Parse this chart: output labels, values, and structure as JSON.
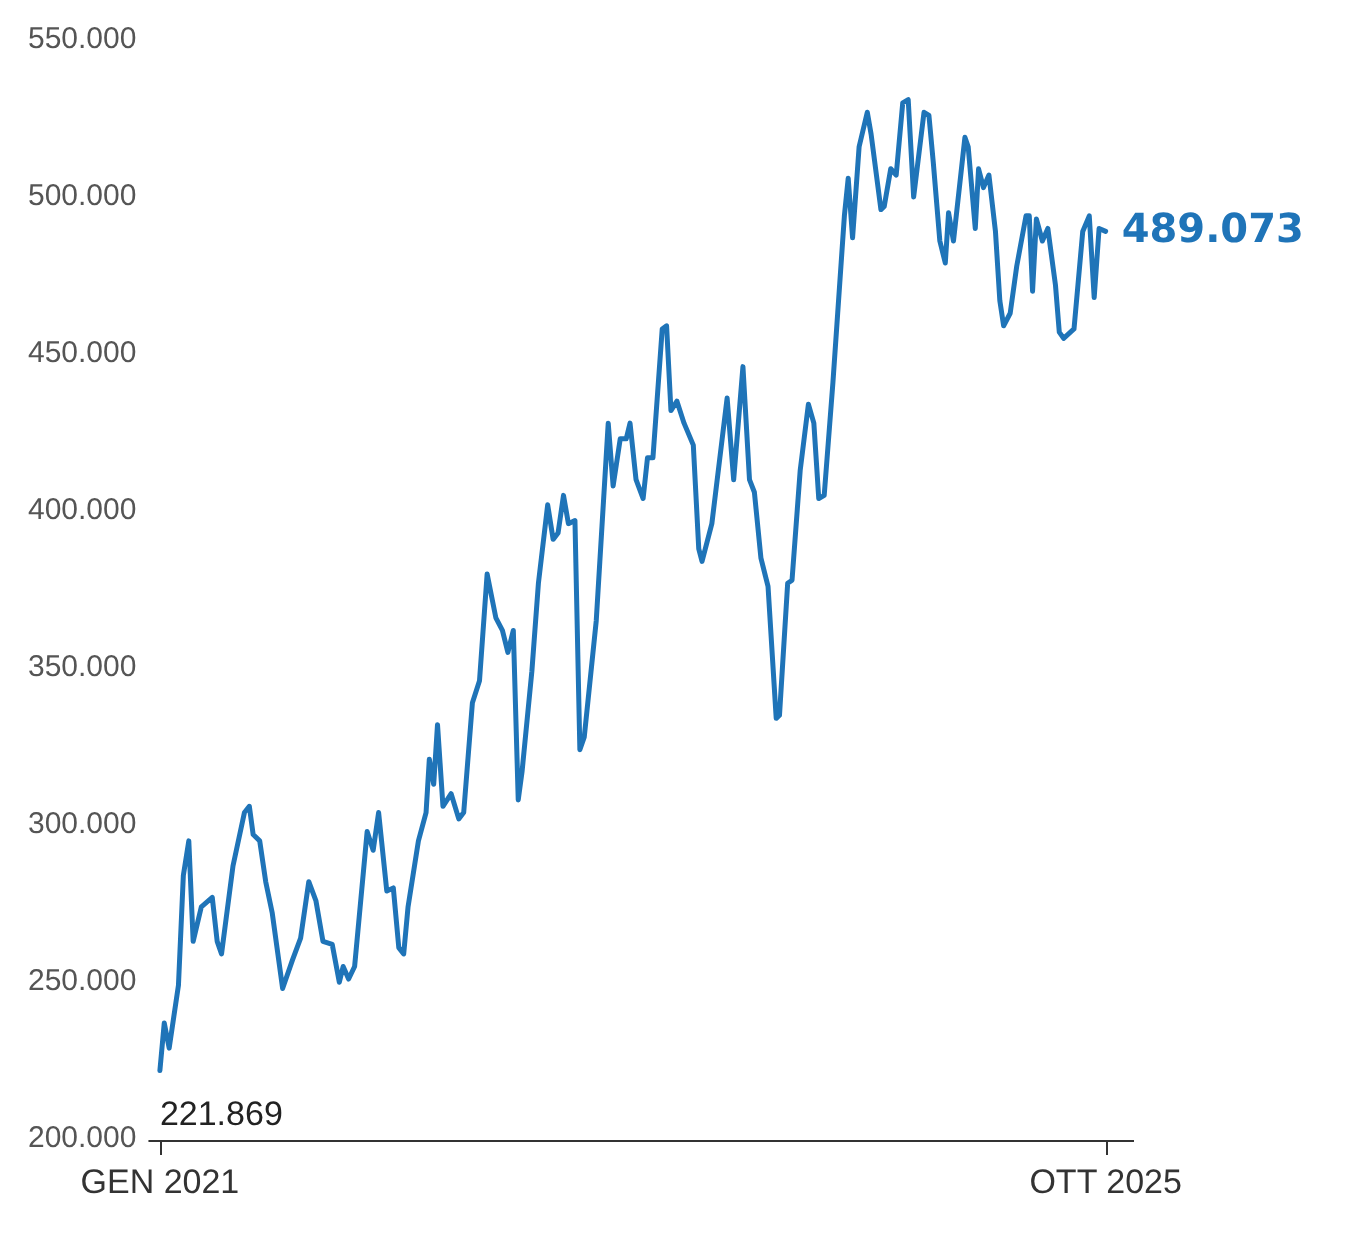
{
  "chart_data": {
    "type": "line",
    "x": [
      "2021-01-01",
      "2021-01-09",
      "2021-01-18",
      "2021-02-04",
      "2021-02-13",
      "2021-02-23",
      "2021-03-03",
      "2021-03-18",
      "2021-04-07",
      "2021-04-16",
      "2021-04-24",
      "2021-05-15",
      "2021-06-05",
      "2021-06-14",
      "2021-06-21",
      "2021-07-03",
      "2021-07-14",
      "2021-07-26",
      "2021-08-14",
      "2021-09-01",
      "2021-09-16",
      "2021-10-01",
      "2021-10-14",
      "2021-10-27",
      "2021-11-13",
      "2021-11-26",
      "2021-12-03",
      "2021-12-13",
      "2021-12-24",
      "2022-01-16",
      "2022-01-27",
      "2022-02-06",
      "2022-02-21",
      "2022-03-05",
      "2022-03-15",
      "2022-03-24",
      "2022-04-01",
      "2022-04-20",
      "2022-05-04",
      "2022-05-10",
      "2022-05-18",
      "2022-05-25",
      "2022-06-04",
      "2022-06-19",
      "2022-07-03",
      "2022-07-12",
      "2022-07-28",
      "2022-08-10",
      "2022-08-24",
      "2022-09-09",
      "2022-09-21",
      "2022-10-01",
      "2022-10-11",
      "2022-10-20",
      "2022-10-27",
      "2022-11-14",
      "2022-11-26",
      "2022-12-13",
      "2022-12-23",
      "2023-01-01",
      "2023-01-11",
      "2023-01-20",
      "2023-02-01",
      "2023-02-10",
      "2023-02-18",
      "2023-03-12",
      "2023-04-03",
      "2023-04-12",
      "2023-04-25",
      "2023-05-06",
      "2023-05-13",
      "2023-05-24",
      "2023-06-06",
      "2023-06-14",
      "2023-06-24",
      "2023-07-11",
      "2023-07-19",
      "2023-07-27",
      "2023-08-07",
      "2023-08-20",
      "2023-09-06",
      "2023-09-16",
      "2023-09-22",
      "2023-10-10",
      "2023-11-07",
      "2023-11-19",
      "2023-12-06",
      "2023-12-18",
      "2023-12-27",
      "2024-01-08",
      "2024-01-21",
      "2024-02-05",
      "2024-02-11",
      "2024-02-26",
      "2024-03-05",
      "2024-03-20",
      "2024-04-04",
      "2024-04-14",
      "2024-04-23",
      "2024-05-03",
      "2024-05-19",
      "2024-06-09",
      "2024-06-16",
      "2024-06-24",
      "2024-07-06",
      "2024-07-21",
      "2024-07-28",
      "2024-08-15",
      "2024-08-21",
      "2024-09-02",
      "2024-09-12",
      "2024-09-24",
      "2024-10-04",
      "2024-10-14",
      "2024-11-02",
      "2024-11-11",
      "2024-11-19",
      "2024-12-01",
      "2024-12-11",
      "2024-12-17",
      "2024-12-26",
      "2025-01-16",
      "2025-01-22",
      "2025-02-04",
      "2025-02-10",
      "2025-02-19",
      "2025-03-01",
      "2025-03-13",
      "2025-03-21",
      "2025-03-28",
      "2025-04-09",
      "2025-04-21",
      "2025-05-08",
      "2025-05-14",
      "2025-05-20",
      "2025-05-27",
      "2025-06-07",
      "2025-06-17",
      "2025-07-01",
      "2025-07-08",
      "2025-07-16",
      "2025-08-04",
      "2025-08-20",
      "2025-09-01",
      "2025-09-10",
      "2025-09-19",
      "2025-10-01"
    ],
    "series": [
      {
        "color": "#1f74b8",
        "values": [
          221869,
          237000,
          229000,
          249000,
          284000,
          295000,
          263000,
          274000,
          277000,
          263000,
          259000,
          287000,
          304000,
          306000,
          297000,
          295000,
          282000,
          272000,
          248000,
          257000,
          264000,
          282000,
          276000,
          263000,
          262000,
          250000,
          255000,
          251000,
          255000,
          298000,
          292000,
          304000,
          279000,
          280000,
          261000,
          259000,
          274000,
          295000,
          304000,
          321000,
          313000,
          332000,
          306000,
          310000,
          302000,
          304000,
          339000,
          346000,
          380000,
          366000,
          362000,
          355000,
          362000,
          308000,
          317000,
          349000,
          377000,
          402000,
          391000,
          393000,
          405000,
          396000,
          397000,
          324000,
          328000,
          365000,
          428000,
          408000,
          423000,
          423000,
          428000,
          410000,
          404000,
          417000,
          417000,
          458000,
          459000,
          432000,
          435000,
          428000,
          421000,
          388000,
          384000,
          396000,
          436000,
          410000,
          446000,
          410000,
          406000,
          385000,
          376000,
          334000,
          335000,
          377000,
          378000,
          413000,
          434000,
          428000,
          404000,
          405000,
          441000,
          494000,
          506000,
          487000,
          516000,
          527000,
          520000,
          496000,
          497000,
          509000,
          507000,
          530000,
          531000,
          500000,
          527000,
          526000,
          511000,
          486000,
          479000,
          495000,
          486000,
          519000,
          516000,
          490000,
          509000,
          503000,
          507000,
          489000,
          467000,
          459000,
          463000,
          478000,
          494000,
          494000,
          470000,
          493000,
          486000,
          490000,
          472000,
          457000,
          455000,
          458000,
          489000,
          494000,
          468000,
          490000,
          489073
        ]
      }
    ],
    "xlim": [
      "2020-12-11",
      "2025-11-22"
    ],
    "xticks": [
      {
        "value": "2021-01-01",
        "label": "GEN 2021"
      },
      {
        "value": "2025-10-01",
        "label": "OTT 2025"
      }
    ],
    "ylim": [
      200000,
      550000
    ],
    "yticks": [
      {
        "value": 200000,
        "label": "200.000"
      },
      {
        "value": 250000,
        "label": "250.000"
      },
      {
        "value": 300000,
        "label": "300.000"
      },
      {
        "value": 350000,
        "label": "350.000"
      },
      {
        "value": 400000,
        "label": "400.000"
      },
      {
        "value": 450000,
        "label": "450.000"
      },
      {
        "value": 500000,
        "label": "500.000"
      },
      {
        "value": 550000,
        "label": "550.000"
      }
    ],
    "annotations": [
      {
        "text": "221.869",
        "x": "2021-01-01",
        "y": 221869
      },
      {
        "text": "489.073",
        "x": "2025-10-01",
        "y": 489073
      }
    ],
    "grid": false,
    "legend": false
  }
}
